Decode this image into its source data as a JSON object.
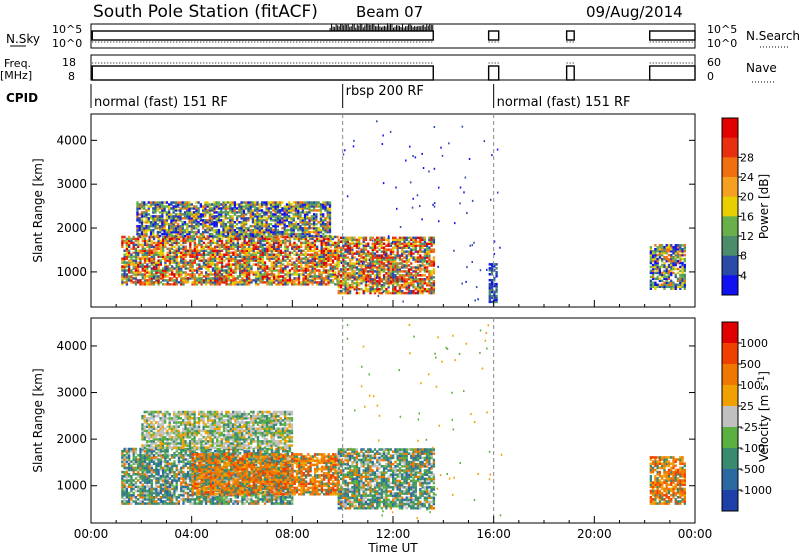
{
  "header": {
    "title": "South Pole Station (fitACF)",
    "beam": "Beam 07",
    "date": "09/Aug/2014"
  },
  "strip_labels": {
    "nsky": "N.Sky",
    "freq_line1": "Freq.",
    "freq_line2": "[MHz]",
    "cpid": "CPID",
    "nsearch": "N.Search",
    "nave": "Nave"
  },
  "strip_ticks": {
    "nsky_top": "10^5",
    "nsky_bottom": "10^0",
    "nsearch_top": "10^5",
    "nsearch_bottom": "10^0",
    "freq_top": "18",
    "freq_bottom": "8",
    "nave_top": "60",
    "nave_bottom": "0"
  },
  "cpid_segments": [
    {
      "label": "normal (fast) 151 RF",
      "start_hour": 0.0,
      "end_hour": 10.0
    },
    {
      "label": "rbsp 200 RF",
      "start_hour": 10.0,
      "end_hour": 16.0
    },
    {
      "label": "normal (fast) 151 RF",
      "start_hour": 16.0,
      "end_hour": 24.0
    }
  ],
  "chart_data": [
    {
      "type": "heatmap",
      "name": "power",
      "xlabel": "Time UT",
      "ylabel": "Slant Range [km]",
      "xlim": [
        0,
        24
      ],
      "ylim": [
        200,
        4600
      ],
      "xticks": [
        "00:00",
        "04:00",
        "08:00",
        "12:00",
        "16:00",
        "20:00",
        "00:00"
      ],
      "yticks": [
        1000,
        2000,
        3000,
        4000
      ],
      "colorbar": {
        "label": "Power [dB]",
        "ticks": [
          "4",
          "8",
          "12",
          "16",
          "20",
          "24",
          "28"
        ],
        "colors": [
          "#1010f0",
          "#2a4aa8",
          "#4b8c6a",
          "#6ab04a",
          "#e8d000",
          "#f5a020",
          "#f07010",
          "#e83010",
          "#e00000"
        ]
      },
      "regions": [
        {
          "t0": 1.2,
          "t1": 9.8,
          "r0": 700,
          "r1": 1800,
          "level": "high"
        },
        {
          "t0": 1.8,
          "t1": 9.5,
          "r0": 1800,
          "r1": 2600,
          "level": "mid"
        },
        {
          "t0": 9.8,
          "t1": 13.6,
          "r0": 500,
          "r1": 1800,
          "level": "high"
        },
        {
          "t0": 15.8,
          "t1": 16.1,
          "r0": 300,
          "r1": 1200,
          "level": "low"
        },
        {
          "t0": 22.2,
          "t1": 23.6,
          "r0": 600,
          "r1": 1600,
          "level": "mid"
        }
      ]
    },
    {
      "type": "heatmap",
      "name": "velocity",
      "xlabel": "Time UT",
      "ylabel": "Slant Range [km]",
      "xlim": [
        0,
        24
      ],
      "ylim": [
        200,
        4600
      ],
      "xticks": [
        "00:00",
        "04:00",
        "08:00",
        "12:00",
        "16:00",
        "20:00",
        "00:00"
      ],
      "yticks": [
        1000,
        2000,
        3000,
        4000
      ],
      "colorbar": {
        "label": "Velocity [m s^-1]",
        "ticks": [
          "1000",
          "500",
          "100",
          "25",
          "-25",
          "-100",
          "-500",
          "-1000"
        ],
        "colors": [
          "#1e3fa8",
          "#2a6aa0",
          "#3a8a70",
          "#5ab040",
          "#c0c0c0",
          "#f0a000",
          "#f07800",
          "#f04000",
          "#e00000"
        ]
      },
      "regions": [
        {
          "t0": 1.2,
          "t1": 8.0,
          "r0": 600,
          "r1": 1800,
          "level": "green"
        },
        {
          "t0": 4.0,
          "t1": 9.8,
          "r0": 800,
          "r1": 1700,
          "level": "orange"
        },
        {
          "t0": 2.0,
          "t1": 8.0,
          "r0": 1800,
          "r1": 2600,
          "level": "gray"
        },
        {
          "t0": 9.8,
          "t1": 13.6,
          "r0": 500,
          "r1": 1800,
          "level": "green"
        },
        {
          "t0": 22.2,
          "t1": 23.6,
          "r0": 600,
          "r1": 1600,
          "level": "orange"
        }
      ]
    }
  ]
}
